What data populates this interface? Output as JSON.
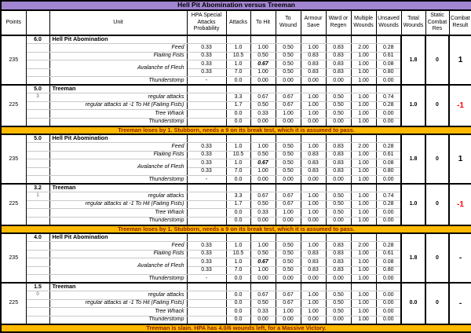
{
  "title": "Hell Pit Abomination versus Treeman",
  "colors": {
    "title_bg": "#A285D1",
    "banner_bg": "#FFB900",
    "banner_text": "#8B1A00",
    "negative_result": "#FF0000"
  },
  "columns": [
    "Points",
    "",
    "Unit",
    "HPA Special Attacks Probability",
    "Attacks",
    "To Hit",
    "To Wound",
    "Armour Save",
    "Ward or Regen",
    "Multiple Wounds",
    "Unsaved Wounds",
    "Total Wounds",
    "Static Combat Res",
    "Combat Result"
  ],
  "sections": [
    {
      "type": "block",
      "points": "235",
      "ratio": "6.0",
      "sub": "",
      "unit": "Hell Pit Abomination",
      "rows": [
        {
          "name": "Feed",
          "values": [
            "0.33",
            "1.0",
            "1.00",
            "0.50",
            "1.00",
            "0.83",
            "2.00",
            "0.28"
          ]
        },
        {
          "name": "Flailing Fists",
          "values": [
            "0.33",
            "10.5",
            "0.50",
            "0.50",
            "0.83",
            "0.83",
            "1.00",
            "0.61"
          ]
        },
        {
          "name": "Avalanche of Flesh",
          "rowspan": 2,
          "bold_idx": 2,
          "values": [
            "0.33",
            "1.0",
            "0.67",
            "0.50",
            "0.83",
            "0.83",
            "1.00",
            "0.08"
          ]
        },
        {
          "cont": true,
          "values": [
            "0.33",
            "7.0",
            "1.00",
            "0.50",
            "0.83",
            "0.83",
            "1.00",
            "0.80"
          ]
        },
        {
          "name": "Thunderstomp",
          "values": [
            "-",
            "0.0",
            "0.00",
            "0.00",
            "0.00",
            "0.00",
            "1.00",
            "0.00"
          ]
        }
      ],
      "total_wounds": "1.8",
      "static_res": "0",
      "combat_result": "1",
      "negative": false
    },
    {
      "type": "block",
      "points": "225",
      "ratio": "5.0",
      "sub": "3",
      "unit": "Treeman",
      "rows": [
        {
          "name": "regular attacks",
          "values": [
            "",
            "3.3",
            "0.67",
            "0.67",
            "1.00",
            "0.50",
            "1.00",
            "0.74"
          ]
        },
        {
          "name": "regular attacks at -1 To Hit (Failing Fists)",
          "values": [
            "",
            "1.7",
            "0.50",
            "0.67",
            "1.00",
            "0.50",
            "1.00",
            "0.28"
          ]
        },
        {
          "name": "Tree Whack",
          "values": [
            "",
            "0.0",
            "0.33",
            "1.00",
            "1.00",
            "0.50",
            "1.00",
            "0.00"
          ]
        },
        {
          "name": "Thunderstomp",
          "values": [
            "",
            "0.0",
            "0.00",
            "0.00",
            "0.00",
            "0.00",
            "1.00",
            "0.00"
          ]
        }
      ],
      "total_wounds": "1.0",
      "static_res": "0",
      "combat_result": "-1",
      "negative": true
    },
    {
      "type": "banner",
      "text": "Treeman loses by 1.  Stubborn, needs a 9 on its break test, which it is assumed to pass."
    },
    {
      "type": "block",
      "points": "235",
      "ratio": "5.0",
      "sub": "",
      "unit": "Hell Pit Abomination",
      "rows": [
        {
          "name": "Feed",
          "values": [
            "0.33",
            "1.0",
            "1.00",
            "0.50",
            "1.00",
            "0.83",
            "2.00",
            "0.28"
          ]
        },
        {
          "name": "Flailing Fists",
          "values": [
            "0.33",
            "10.5",
            "0.50",
            "0.50",
            "0.83",
            "0.83",
            "1.00",
            "0.61"
          ]
        },
        {
          "name": "Avalanche of Flesh",
          "rowspan": 2,
          "bold_idx": 2,
          "values": [
            "0.33",
            "1.0",
            "0.67",
            "0.50",
            "0.83",
            "0.83",
            "1.00",
            "0.08"
          ]
        },
        {
          "cont": true,
          "values": [
            "0.33",
            "7.0",
            "1.00",
            "0.50",
            "0.83",
            "0.83",
            "1.00",
            "0.80"
          ]
        },
        {
          "name": "Thunderstomp",
          "values": [
            "-",
            "0.0",
            "0.00",
            "0.00",
            "0.00",
            "0.00",
            "1.00",
            "0.00"
          ]
        }
      ],
      "total_wounds": "1.8",
      "static_res": "0",
      "combat_result": "1",
      "negative": false
    },
    {
      "type": "block",
      "points": "225",
      "ratio": "3.2",
      "sub": "1",
      "unit": "Treeman",
      "rows": [
        {
          "name": "regular attacks",
          "values": [
            "",
            "3.3",
            "0.67",
            "0.67",
            "1.00",
            "0.50",
            "1.00",
            "0.74"
          ]
        },
        {
          "name": "regular attacks at -1 To Hit (Failing Fists)",
          "values": [
            "",
            "1.7",
            "0.50",
            "0.67",
            "1.00",
            "0.50",
            "1.00",
            "0.28"
          ]
        },
        {
          "name": "Tree Whack",
          "values": [
            "",
            "0.0",
            "0.33",
            "1.00",
            "1.00",
            "0.50",
            "1.00",
            "0.00"
          ]
        },
        {
          "name": "Thunderstomp",
          "values": [
            "",
            "0.0",
            "0.00",
            "0.00",
            "0.00",
            "0.00",
            "1.00",
            "0.00"
          ]
        }
      ],
      "total_wounds": "1.0",
      "static_res": "0",
      "combat_result": "-1",
      "negative": true
    },
    {
      "type": "banner",
      "text": "Treeman loses by 1.  Stubborn, needs a 9 on its break test, which it is assumed to pass."
    },
    {
      "type": "block",
      "points": "235",
      "ratio": "4.0",
      "sub": "",
      "unit": "Hell Pit Abomination",
      "rows": [
        {
          "name": "Feed",
          "values": [
            "0.33",
            "1.0",
            "1.00",
            "0.50",
            "1.00",
            "0.83",
            "2.00",
            "0.28"
          ]
        },
        {
          "name": "Flailing Fists",
          "values": [
            "0.33",
            "10.5",
            "0.50",
            "0.50",
            "0.83",
            "0.83",
            "1.00",
            "0.61"
          ]
        },
        {
          "name": "Avalanche of Flesh",
          "rowspan": 2,
          "bold_idx": 2,
          "values": [
            "0.33",
            "1.0",
            "0.67",
            "0.50",
            "0.83",
            "0.83",
            "1.00",
            "0.08"
          ]
        },
        {
          "cont": true,
          "values": [
            "0.33",
            "7.0",
            "1.00",
            "0.50",
            "0.83",
            "0.83",
            "1.00",
            "0.80"
          ]
        },
        {
          "name": "Thunderstomp",
          "values": [
            "-",
            "0.0",
            "0.00",
            "0.00",
            "0.00",
            "0.00",
            "1.00",
            "0.00"
          ]
        }
      ],
      "total_wounds": "1.8",
      "static_res": "0",
      "combat_result": "-",
      "negative": false
    },
    {
      "type": "block",
      "points": "225",
      "ratio": "1.5",
      "sub": "0",
      "unit": "Treeman",
      "rows": [
        {
          "name": "regular attacks",
          "values": [
            "",
            "0.0",
            "0.67",
            "0.67",
            "1.00",
            "0.50",
            "1.00",
            "0.00"
          ]
        },
        {
          "name": "regular attacks at -1 To Hit (Failing Fists)",
          "values": [
            "",
            "0.0",
            "0.50",
            "0.67",
            "1.00",
            "0.50",
            "1.00",
            "0.00"
          ]
        },
        {
          "name": "Tree Whack",
          "values": [
            "",
            "0.0",
            "0.33",
            "1.00",
            "1.00",
            "0.50",
            "1.00",
            "0.00"
          ]
        },
        {
          "name": "Thunderstomp",
          "values": [
            "",
            "0.0",
            "0.00",
            "0.00",
            "0.00",
            "0.00",
            "1.00",
            "0.00"
          ]
        }
      ],
      "total_wounds": "0.0",
      "static_res": "0",
      "combat_result": "-",
      "negative": false
    },
    {
      "type": "banner",
      "text": "Treeman is slain.  HPA has 4.0/6 wounds left, for a Massive Victory."
    }
  ]
}
